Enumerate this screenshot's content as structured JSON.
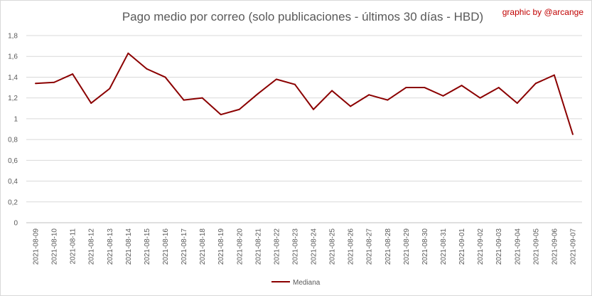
{
  "chart_data": {
    "type": "line",
    "title": "Pago medio por correo (solo publicaciones - últimos 30 días - HBD)",
    "credit": "graphic by @arcange",
    "xlabel": "",
    "ylabel": "",
    "ylim": [
      0,
      1.8
    ],
    "yticks": [
      0,
      0.2,
      0.4,
      0.6,
      0.8,
      1,
      1.2,
      1.4,
      1.6,
      1.8
    ],
    "ytick_labels": [
      "0",
      "0,2",
      "0,4",
      "0,6",
      "0,8",
      "1",
      "1,2",
      "1,4",
      "1,6",
      "1,8"
    ],
    "grid": true,
    "legend_position": "bottom",
    "categories": [
      "2021-08-09",
      "2021-08-10",
      "2021-08-11",
      "2021-08-12",
      "2021-08-13",
      "2021-08-14",
      "2021-08-15",
      "2021-08-16",
      "2021-08-17",
      "2021-08-18",
      "2021-08-19",
      "2021-08-20",
      "2021-08-21",
      "2021-08-22",
      "2021-08-23",
      "2021-08-24",
      "2021-08-25",
      "2021-08-26",
      "2021-08-27",
      "2021-08-28",
      "2021-08-29",
      "2021-08-30",
      "2021-08-31",
      "2021-09-01",
      "2021-09-02",
      "2021-09-03",
      "2021-09-04",
      "2021-09-05",
      "2021-09-06",
      "2021-09-07"
    ],
    "series": [
      {
        "name": "Mediana",
        "color": "#8b0000",
        "values": [
          1.34,
          1.35,
          1.43,
          1.15,
          1.29,
          1.63,
          1.48,
          1.4,
          1.18,
          1.2,
          1.04,
          1.09,
          1.24,
          1.38,
          1.33,
          1.09,
          1.27,
          1.12,
          1.23,
          1.18,
          1.3,
          1.3,
          1.22,
          1.32,
          1.2,
          1.3,
          1.15,
          1.34,
          1.42,
          0.85
        ]
      }
    ]
  }
}
